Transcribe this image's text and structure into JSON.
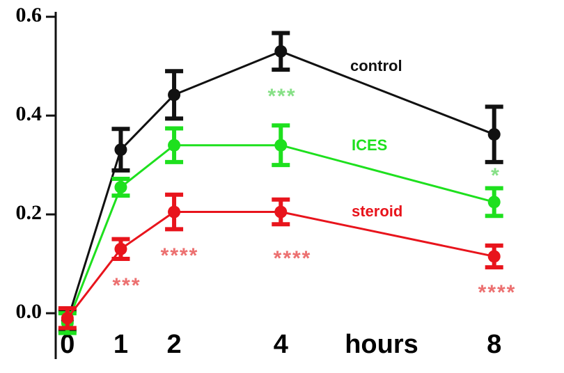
{
  "chart_data": {
    "type": "line",
    "x": [
      0,
      1,
      2,
      4,
      8
    ],
    "x_label": "hours",
    "xlim": [
      -0.22,
      8.5
    ],
    "xticks": [
      0,
      1,
      2,
      4,
      8
    ],
    "ylim": [
      -0.09,
      0.61
    ],
    "yticks": [
      {
        "value": 0,
        "label": "0.0"
      },
      0.2,
      0.4,
      0.6
    ],
    "series": [
      {
        "name": "control",
        "color": "#111111",
        "values": [
          -0.015,
          0.331,
          0.442,
          0.53,
          0.362
        ],
        "errors": [
          0.02,
          0.042,
          0.048,
          0.037,
          0.056
        ]
      },
      {
        "name": "ICES",
        "color": "#1ee01e",
        "values": [
          -0.02,
          0.255,
          0.34,
          0.34,
          0.225
        ],
        "errors": [
          0.02,
          0.017,
          0.034,
          0.04,
          0.028
        ]
      },
      {
        "name": "steroid",
        "color": "#e8141c",
        "values": [
          -0.01,
          0.13,
          0.205,
          0.205,
          0.115
        ],
        "errors": [
          0.02,
          0.02,
          0.035,
          0.025,
          0.022
        ]
      }
    ],
    "annotations": [
      {
        "text": "***",
        "color": "#86e086"
      },
      {
        "text": "*",
        "color": "#86e086"
      },
      {
        "text": "***",
        "color": "#ec7070"
      },
      {
        "text": "****",
        "color": "#ec7070"
      },
      {
        "text": "****",
        "color": "#ec7070"
      },
      {
        "text": "****",
        "color": "#ec7070"
      }
    ]
  }
}
